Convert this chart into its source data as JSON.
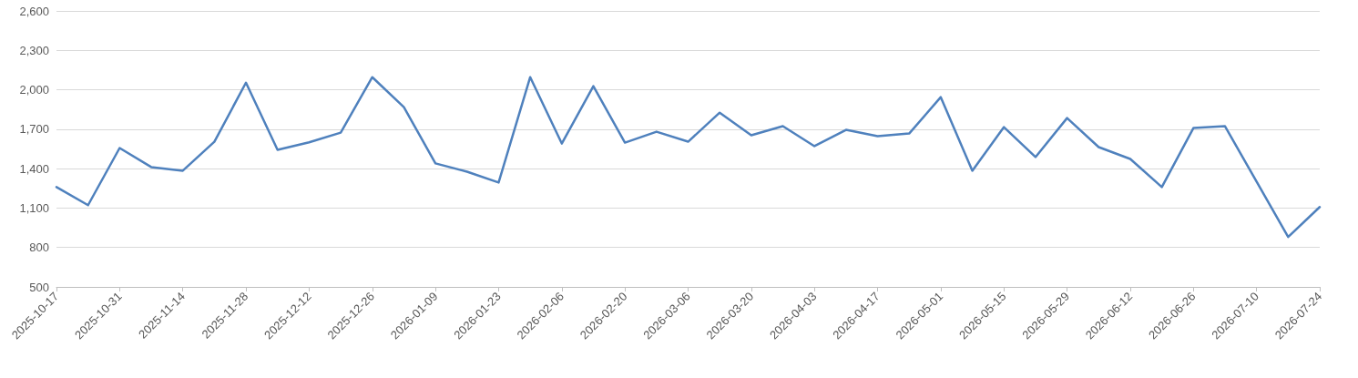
{
  "chart_data": {
    "type": "line",
    "categories": [
      "2025-10-17",
      null,
      "2025-10-31",
      null,
      "2025-11-14",
      null,
      "2025-11-28",
      null,
      "2025-12-12",
      null,
      "2025-12-26",
      null,
      "2026-01-09",
      null,
      "2026-01-23",
      null,
      "2026-02-06",
      null,
      "2026-02-20",
      null,
      "2026-03-06",
      null,
      "2026-03-20",
      null,
      "2026-04-03",
      null,
      "2026-04-17",
      null,
      "2026-05-01",
      null,
      "2026-05-15",
      null,
      "2026-05-29",
      null,
      "2026-06-12",
      null,
      "2026-06-26",
      null,
      "2026-07-10",
      null,
      "2026-07-24"
    ],
    "series": [
      {
        "color": "#4f81bd",
        "values": [
          1260,
          1122,
          1557,
          1412,
          1384,
          1605,
          2054,
          1543,
          1600,
          1674,
          2096,
          1868,
          1440,
          1377,
          1294,
          2096,
          1591,
          2027,
          1598,
          1681,
          1605,
          1826,
          1654,
          1723,
          1571,
          1695,
          1647,
          1667,
          1944,
          1384,
          1716,
          1488,
          1785,
          1564,
          1474,
          1260,
          1709,
          1723,
          1301,
          880,
          1108
        ]
      }
    ],
    "ylim": [
      500,
      2600
    ],
    "yticks": [
      {
        "value": 500,
        "label": "500"
      },
      {
        "value": 800,
        "label": "800"
      },
      {
        "value": 1100,
        "label": "1,100"
      },
      {
        "value": 1400,
        "label": "1,400"
      },
      {
        "value": 1700,
        "label": "1,700"
      },
      {
        "value": 2000,
        "label": "2,000"
      },
      {
        "value": 2300,
        "label": "2,300"
      },
      {
        "value": 2600,
        "label": "2,600"
      }
    ],
    "grid": "y",
    "marker": "none",
    "line_style": "solid"
  }
}
